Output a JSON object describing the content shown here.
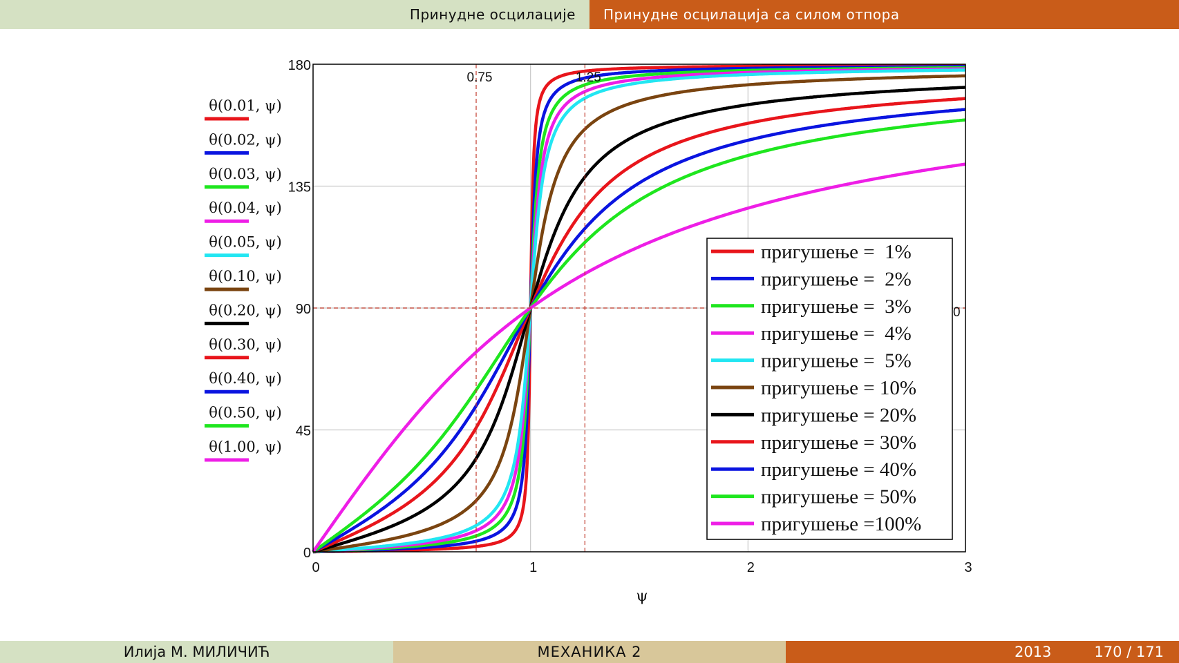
{
  "header": {
    "section_left": "Принудне осцилације",
    "section_right": "Принудне осцилација са силом отпора"
  },
  "footer": {
    "author": "Илија М. МИЛИЧИЋ",
    "course": "МЕХАНИКА 2",
    "year": "2013",
    "page": "170 / 171"
  },
  "chart_data": {
    "type": "line",
    "title": "",
    "xlabel": "ψ",
    "ylabel": "",
    "xlim": [
      0,
      3
    ],
    "ylim": [
      0,
      180
    ],
    "grid": true,
    "x_ticks": [
      "0",
      "1",
      "2",
      "3"
    ],
    "y_ticks": [
      "0",
      "45",
      "90",
      "135",
      "180"
    ],
    "markers": {
      "vertical": [
        {
          "x": 0.75,
          "label": "0.75"
        },
        {
          "x": 1.25,
          "label": "1.25"
        }
      ],
      "horizontal": [
        {
          "y": 90,
          "label": "90"
        }
      ],
      "color": "#c0392b"
    },
    "function": "θ(ζ, ψ) = atan2(2ζψ, 1 − ψ²) in degrees",
    "series": [
      {
        "expr": "θ(0.01, ψ)",
        "zeta": 0.01,
        "name": "пригушење =  1%",
        "color": "#e8151b"
      },
      {
        "expr": "θ(0.02, ψ)",
        "zeta": 0.02,
        "name": "пригушење =  2%",
        "color": "#0a14e0"
      },
      {
        "expr": "θ(0.03, ψ)",
        "zeta": 0.03,
        "name": "пригушење =  3%",
        "color": "#1ee61e"
      },
      {
        "expr": "θ(0.04, ψ)",
        "zeta": 0.04,
        "name": "пригушење =  4%",
        "color": "#ee1ee6"
      },
      {
        "expr": "θ(0.05, ψ)",
        "zeta": 0.05,
        "name": "пригушење =  5%",
        "color": "#22e6f2"
      },
      {
        "expr": "θ(0.10, ψ)",
        "zeta": 0.1,
        "name": "пригушење = 10%",
        "color": "#7a4410"
      },
      {
        "expr": "θ(0.20, ψ)",
        "zeta": 0.2,
        "name": "пригушење = 20%",
        "color": "#000000"
      },
      {
        "expr": "θ(0.30, ψ)",
        "zeta": 0.3,
        "name": "пригушење = 30%",
        "color": "#e8151b"
      },
      {
        "expr": "θ(0.40, ψ)",
        "zeta": 0.4,
        "name": "пригушење = 40%",
        "color": "#0a14e0"
      },
      {
        "expr": "θ(0.50, ψ)",
        "zeta": 0.5,
        "name": "пригушење = 50%",
        "color": "#1ee61e"
      },
      {
        "expr": "θ(1.00, ψ)",
        "zeta": 1.0,
        "name": "пригушење =100%",
        "color": "#ee1ee6"
      }
    ],
    "legend_position": "bottom-right"
  }
}
